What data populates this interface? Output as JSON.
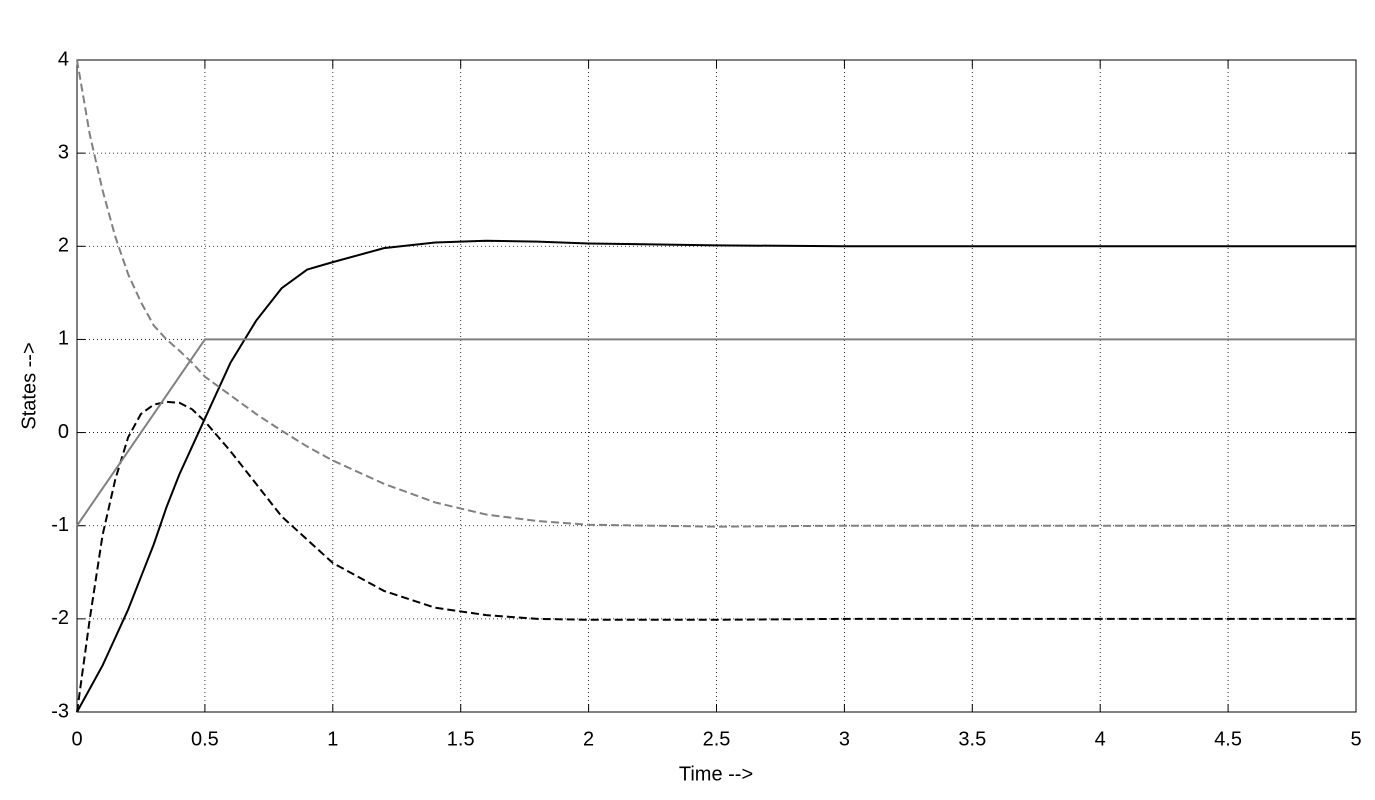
{
  "chart_data": {
    "type": "line",
    "xlabel": "Time -->",
    "ylabel": "States -->",
    "x": [
      0,
      0.05,
      0.1,
      0.15,
      0.2,
      0.25,
      0.3,
      0.35,
      0.4,
      0.45,
      0.5,
      0.6,
      0.7,
      0.8,
      0.9,
      1,
      1.2,
      1.4,
      1.6,
      1.8,
      2,
      2.5,
      3,
      3.5,
      4,
      4.5,
      5
    ],
    "series": [
      {
        "color": "#000000",
        "linestyle": "solid",
        "values": [
          -3,
          -2.75,
          -2.5,
          -2.2,
          -1.9,
          -1.55,
          -1.2,
          -0.8,
          -0.45,
          -0.15,
          0.15,
          0.75,
          1.2,
          1.55,
          1.75,
          1.83,
          1.98,
          2.04,
          2.06,
          2.05,
          2.03,
          2.01,
          2,
          2,
          2,
          2,
          2
        ]
      },
      {
        "color": "#000000",
        "linestyle": "dashed",
        "values": [
          -3,
          -2,
          -1.1,
          -0.5,
          -0.05,
          0.2,
          0.3,
          0.33,
          0.32,
          0.25,
          0.12,
          -0.2,
          -0.55,
          -0.9,
          -1.15,
          -1.4,
          -1.7,
          -1.88,
          -1.96,
          -2,
          -2.01,
          -2.01,
          -2,
          -2,
          -2,
          -2,
          -2
        ]
      },
      {
        "color": "#808080",
        "linestyle": "solid",
        "values": [
          -1,
          -0.8,
          -0.6,
          -0.4,
          -0.2,
          0,
          0.2,
          0.4,
          0.6,
          0.8,
          1,
          1,
          1,
          1,
          1,
          1,
          1,
          1,
          1,
          1,
          1,
          1,
          1,
          1,
          1,
          1,
          1
        ]
      },
      {
        "color": "#808080",
        "linestyle": "dashed",
        "values": [
          4,
          3.2,
          2.6,
          2.1,
          1.7,
          1.4,
          1.15,
          1,
          0.88,
          0.75,
          0.6,
          0.4,
          0.2,
          0.02,
          -0.15,
          -0.3,
          -0.55,
          -0.75,
          -0.88,
          -0.95,
          -0.99,
          -1.01,
          -1,
          -1,
          -1,
          -1,
          -1
        ]
      }
    ],
    "xlim": [
      0,
      5
    ],
    "xticks": [
      0,
      0.5,
      1,
      1.5,
      2,
      2.5,
      3,
      3.5,
      4,
      4.5,
      5
    ],
    "ylim": [
      -3,
      4
    ],
    "yticks": [
      -3,
      -2,
      -1,
      0,
      1,
      2,
      3,
      4
    ],
    "grid": true
  }
}
